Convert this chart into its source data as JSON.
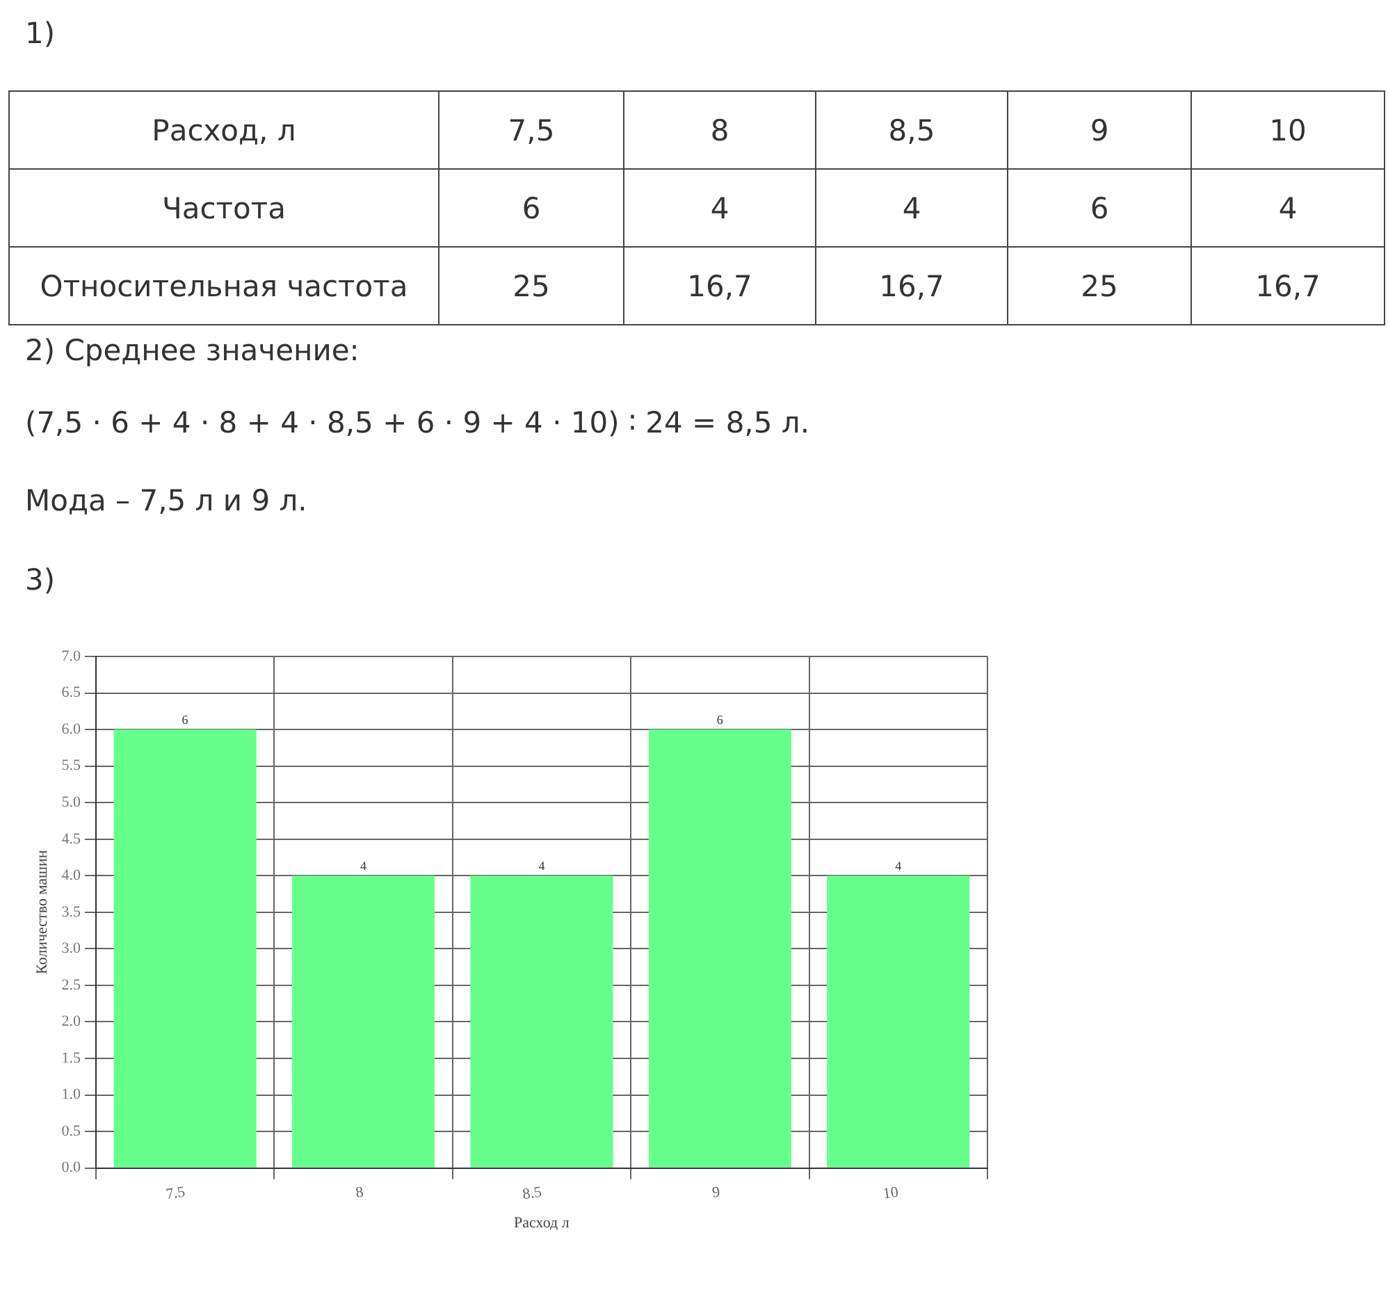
{
  "chart_data": {
    "type": "bar",
    "xlabel": "Расход л",
    "ylabel": "Количество машин",
    "categories": [
      "7.5",
      "8",
      "8.5",
      "9",
      "10"
    ],
    "values": [
      6,
      4,
      4,
      6,
      4
    ],
    "color": "#66ff8c",
    "ylim": [
      0,
      7
    ],
    "yticks": [
      {
        "value": 0,
        "label": "0.0"
      },
      {
        "value": 0.5,
        "label": "0.5"
      },
      {
        "value": 1,
        "label": "1.0"
      },
      {
        "value": 1.5,
        "label": "1.5"
      },
      {
        "value": 2,
        "label": "2.0"
      },
      {
        "value": 2.5,
        "label": "2.5"
      },
      {
        "value": 3,
        "label": "3.0"
      },
      {
        "value": 3.5,
        "label": "3.5"
      },
      {
        "value": 4,
        "label": "4.0"
      },
      {
        "value": 4.5,
        "label": "4.5"
      },
      {
        "value": 5,
        "label": "5.0"
      },
      {
        "value": 5.5,
        "label": "5.5"
      },
      {
        "value": 6,
        "label": "6.0"
      },
      {
        "value": 6.5,
        "label": "6.5"
      },
      {
        "value": 7,
        "label": "7.0"
      }
    ],
    "grid": true,
    "data_labels": true,
    "annotations": [
      "1)",
      "Расход, л",
      "7,5",
      "8",
      "8,5",
      "9",
      "10",
      "Частота",
      "6",
      "4",
      "4",
      "6",
      "4",
      "Относительная частота",
      "25",
      "16,7",
      "16,7",
      "25",
      "16,7",
      "2) Среднее значение:",
      "(7,5 · 6 + 4 · 8 + 4 · 8,5 + 6 · 9 + 4 · 10) ∶ 24 = 8,5 л.",
      "Мода – 7,5 л  и  9 л.",
      "3)"
    ]
  }
}
